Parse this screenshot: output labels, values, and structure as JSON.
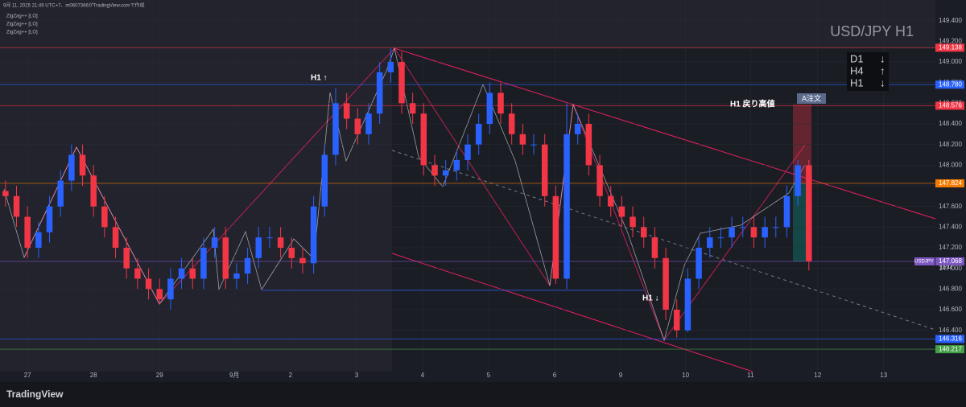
{
  "chart_data": {
    "type": "candlestick",
    "header": "9月 11, 2025 21:49 UTC+7、m0607366がTradingView.comで作成",
    "indicators": [
      "ZigZag++ [LO]",
      "ZigZag++ [LO]",
      "ZigZag++ [LO]"
    ],
    "watermark": "USD/JPY H1",
    "trend_panel": [
      {
        "label": "D1",
        "arrow": "↓"
      },
      {
        "label": "H4",
        "arrow": "↑"
      },
      {
        "label": "H1",
        "arrow": "↓"
      }
    ],
    "annotations": [
      "H1 ↑",
      "H1 戻り高値",
      "A注文",
      "H1 ↓"
    ],
    "symbol": "USDJPY",
    "countdown": "10:44",
    "brand": "TradingView",
    "up_color": "#2962ff",
    "down_color": "#f23645",
    "open": [
      147.75,
      147.7,
      147.5,
      147.2,
      147.35,
      147.6,
      147.85,
      148.1,
      147.9,
      147.6,
      147.4,
      147.2,
      147.0,
      146.9,
      146.8,
      146.7,
      146.9,
      147.0,
      146.9,
      147.2,
      147.3,
      146.9,
      146.95,
      147.1,
      147.3,
      147.3,
      147.2,
      147.1,
      147.05,
      147.6,
      148.1,
      148.6,
      148.45,
      148.3,
      148.5,
      148.9,
      149.0,
      148.6,
      148.5,
      148.0,
      147.9,
      147.95,
      148.05,
      148.2,
      148.4,
      148.7,
      148.5,
      148.3,
      148.2,
      148.2,
      147.7,
      146.9,
      148.3,
      148.4,
      148.0,
      147.7,
      147.6,
      147.5,
      147.4,
      147.3,
      147.1,
      146.6,
      146.4,
      146.9,
      147.2,
      147.3,
      147.3,
      147.4,
      147.4,
      147.3,
      147.4,
      147.4,
      147.7,
      148.0
    ],
    "high": [
      147.85,
      147.8,
      147.6,
      147.45,
      147.7,
      147.95,
      148.2,
      148.2,
      148.0,
      147.7,
      147.5,
      147.3,
      147.1,
      147.0,
      146.9,
      147.0,
      147.1,
      147.1,
      147.3,
      147.4,
      147.4,
      147.05,
      147.2,
      147.4,
      147.4,
      147.4,
      147.3,
      147.2,
      147.7,
      148.2,
      148.75,
      148.7,
      148.55,
      148.6,
      149.0,
      149.13,
      149.1,
      148.7,
      148.6,
      148.1,
      148.05,
      148.15,
      148.3,
      148.5,
      148.8,
      148.8,
      148.6,
      148.4,
      148.3,
      148.3,
      147.8,
      148.6,
      148.5,
      148.5,
      148.1,
      147.8,
      147.7,
      147.6,
      147.5,
      147.4,
      147.2,
      146.7,
      147.0,
      147.3,
      147.4,
      147.4,
      147.5,
      147.5,
      147.5,
      147.5,
      147.5,
      147.8,
      148.05,
      148.05
    ],
    "low": [
      147.6,
      147.4,
      147.1,
      147.1,
      147.25,
      147.5,
      147.75,
      147.8,
      147.5,
      147.3,
      147.1,
      146.9,
      146.8,
      146.7,
      146.65,
      146.6,
      146.8,
      146.8,
      146.8,
      147.1,
      146.8,
      146.8,
      146.85,
      147.0,
      147.2,
      147.1,
      147.0,
      146.95,
      146.95,
      147.5,
      148.0,
      148.35,
      148.2,
      148.2,
      148.4,
      148.8,
      148.5,
      148.4,
      147.9,
      147.8,
      147.8,
      147.85,
      147.95,
      148.1,
      148.3,
      148.4,
      148.2,
      148.1,
      148.1,
      147.6,
      146.85,
      146.8,
      148.2,
      147.9,
      147.6,
      147.5,
      147.4,
      147.3,
      147.2,
      147.0,
      146.5,
      146.33,
      146.38,
      146.8,
      147.1,
      147.2,
      147.2,
      147.3,
      147.2,
      147.2,
      147.3,
      147.3,
      147.6,
      146.98
    ],
    "close": [
      147.7,
      147.5,
      147.2,
      147.35,
      147.6,
      147.85,
      148.1,
      147.9,
      147.6,
      147.4,
      147.2,
      147.0,
      146.9,
      146.8,
      146.7,
      146.9,
      147.0,
      146.9,
      147.2,
      147.3,
      146.9,
      146.95,
      147.1,
      147.3,
      147.3,
      147.2,
      147.1,
      147.05,
      147.6,
      148.1,
      148.6,
      148.45,
      148.3,
      148.5,
      148.9,
      149.0,
      148.6,
      148.5,
      148.0,
      147.9,
      147.95,
      148.05,
      148.2,
      148.4,
      148.7,
      148.5,
      148.3,
      148.2,
      148.2,
      147.7,
      146.9,
      148.3,
      148.4,
      148.0,
      147.7,
      147.6,
      147.5,
      147.4,
      147.3,
      147.1,
      146.6,
      146.4,
      146.9,
      147.2,
      147.3,
      147.3,
      147.4,
      147.4,
      147.3,
      147.4,
      147.4,
      147.7,
      148.0,
      147.07
    ],
    "xlim": [
      -0.5,
      84.5
    ],
    "xticks": [
      {
        "value": 2,
        "label": "27"
      },
      {
        "value": 8,
        "label": "28"
      },
      {
        "value": 14,
        "label": "29"
      },
      {
        "value": 20.8,
        "label": "9月"
      },
      {
        "value": 25.9,
        "label": "2"
      },
      {
        "value": 31.9,
        "label": "3"
      },
      {
        "value": 37.9,
        "label": "4"
      },
      {
        "value": 43.9,
        "label": "5"
      },
      {
        "value": 49.9,
        "label": "6"
      },
      {
        "value": 55.9,
        "label": "9"
      },
      {
        "value": 61.8,
        "label": "10"
      },
      {
        "value": 67.7,
        "label": "11"
      },
      {
        "value": 73.8,
        "label": "12"
      },
      {
        "value": 79.8,
        "label": "13"
      }
    ],
    "ylim": [
      146.0,
      149.6
    ],
    "yticks": [
      {
        "value": 146.4,
        "label": "146.400"
      },
      {
        "value": 146.6,
        "label": "146.600"
      },
      {
        "value": 146.8,
        "label": "146.800"
      },
      {
        "value": 147.0,
        "label": "147.000"
      },
      {
        "value": 147.2,
        "label": "147.200"
      },
      {
        "value": 147.4,
        "label": "147.400"
      },
      {
        "value": 147.6,
        "label": "147.600"
      },
      {
        "value": 147.8,
        "label": "147.800"
      },
      {
        "value": 148.0,
        "label": "148.000"
      },
      {
        "value": 148.2,
        "label": "148.200"
      },
      {
        "value": 148.4,
        "label": "148.400"
      },
      {
        "value": 148.6,
        "label": "148.600"
      },
      {
        "value": 148.8,
        "label": "148.800"
      },
      {
        "value": 149.0,
        "label": "149.000"
      },
      {
        "value": 149.2,
        "label": "149.200"
      },
      {
        "value": 149.4,
        "label": "149.400"
      }
    ],
    "price_lines": [
      {
        "value": 149.138,
        "color": "#f23645"
      },
      {
        "value": 148.78,
        "label": "148.780",
        "color": "#2962ff"
      },
      {
        "value": 148.576,
        "color": "#f23645"
      },
      {
        "value": 147.824,
        "color": "#f57c00"
      },
      {
        "value": 147.068,
        "color": "#7e57c2"
      },
      {
        "value": 146.316,
        "color": "#2962ff"
      },
      {
        "value": 146.217,
        "color": "#43a047"
      }
    ]
  }
}
